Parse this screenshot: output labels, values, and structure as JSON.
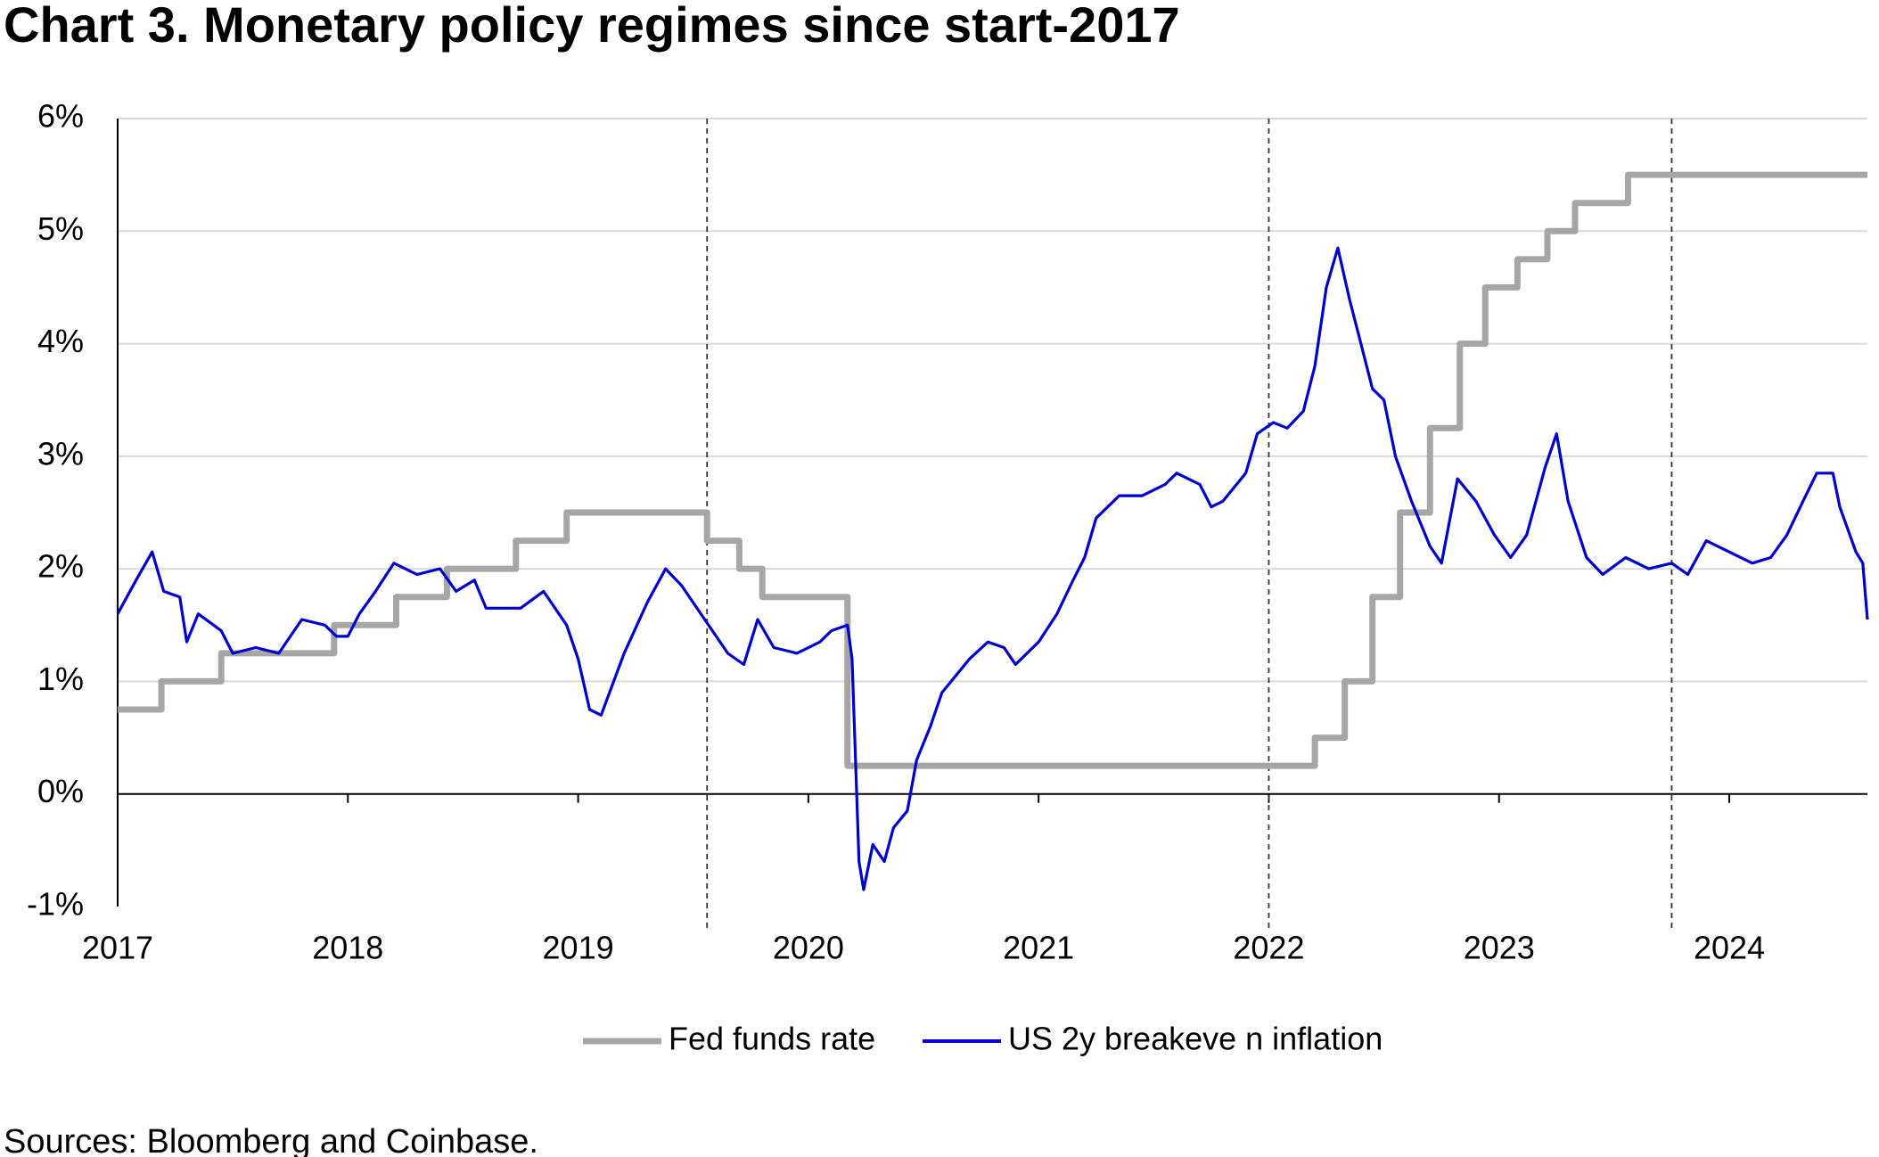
{
  "chart_data": {
    "type": "line",
    "title": "Chart 3. Monetary policy regimes since start-2017",
    "source": "Sources: Bloomberg and Coinbase.",
    "xlim": [
      2017,
      2024.6
    ],
    "xticks": [
      2017,
      2018,
      2019,
      2020,
      2021,
      2022,
      2023,
      2024
    ],
    "ylim": [
      -1,
      6
    ],
    "yticks": [
      {
        "value": -1,
        "label": "-1%"
      },
      {
        "value": 0,
        "label": "0%"
      },
      {
        "value": 1,
        "label": "1%"
      },
      {
        "value": 2,
        "label": "2%"
      },
      {
        "value": 3,
        "label": "3%"
      },
      {
        "value": 4,
        "label": "4%"
      },
      {
        "value": 5,
        "label": "5%"
      },
      {
        "value": 6,
        "label": "6%"
      }
    ],
    "grid": true,
    "legend": "bottom",
    "vlines": [
      2019.56,
      2022.0,
      2023.75
    ],
    "series": [
      {
        "name": "Fed funds rate",
        "color": "#a6a6a6",
        "x": [
          2017,
          2017.19,
          2017.19,
          2017.45,
          2017.45,
          2017.94,
          2017.94,
          2018.21,
          2018.21,
          2018.43,
          2018.43,
          2018.73,
          2018.73,
          2018.95,
          2018.95,
          2019.56,
          2019.56,
          2019.7,
          2019.7,
          2019.8,
          2019.8,
          2020.17,
          2020.17,
          2022.2,
          2022.2,
          2022.33,
          2022.33,
          2022.45,
          2022.45,
          2022.57,
          2022.57,
          2022.7,
          2022.7,
          2022.83,
          2022.83,
          2022.94,
          2022.94,
          2023.08,
          2023.08,
          2023.21,
          2023.21,
          2023.33,
          2023.33,
          2023.56,
          2023.56,
          2024.6
        ],
        "values": [
          0.75,
          0.75,
          1,
          1,
          1.25,
          1.25,
          1.5,
          1.5,
          1.75,
          1.75,
          2,
          2,
          2.25,
          2.25,
          2.5,
          2.5,
          2.25,
          2.25,
          2,
          2,
          1.75,
          1.75,
          0.25,
          0.25,
          0.5,
          0.5,
          1,
          1,
          1.75,
          1.75,
          2.5,
          2.5,
          3.25,
          3.25,
          4,
          4,
          4.5,
          4.5,
          4.75,
          4.75,
          5,
          5,
          5.25,
          5.25,
          5.5,
          5.5
        ]
      },
      {
        "name": "US 2y breakeve n inflation",
        "color": "#0000cc",
        "x": [
          2017,
          2017.08,
          2017.15,
          2017.2,
          2017.27,
          2017.3,
          2017.35,
          2017.45,
          2017.5,
          2017.6,
          2017.7,
          2017.8,
          2017.9,
          2017.95,
          2018.0,
          2018.05,
          2018.12,
          2018.2,
          2018.3,
          2018.4,
          2018.47,
          2018.55,
          2018.6,
          2018.75,
          2018.85,
          2018.95,
          2019.0,
          2019.05,
          2019.1,
          2019.2,
          2019.3,
          2019.38,
          2019.45,
          2019.55,
          2019.65,
          2019.72,
          2019.78,
          2019.85,
          2019.95,
          2020.05,
          2020.1,
          2020.17,
          2020.19,
          2020.22,
          2020.24,
          2020.28,
          2020.33,
          2020.37,
          2020.43,
          2020.47,
          2020.53,
          2020.58,
          2020.7,
          2020.78,
          2020.85,
          2020.9,
          2021.0,
          2021.08,
          2021.15,
          2021.2,
          2021.25,
          2021.35,
          2021.45,
          2021.55,
          2021.6,
          2021.7,
          2021.75,
          2021.8,
          2021.9,
          2021.95,
          2022.02,
          2022.08,
          2022.15,
          2022.2,
          2022.25,
          2022.3,
          2022.35,
          2022.4,
          2022.45,
          2022.5,
          2022.55,
          2022.62,
          2022.7,
          2022.75,
          2022.82,
          2022.9,
          2022.98,
          2023.05,
          2023.12,
          2023.2,
          2023.25,
          2023.3,
          2023.38,
          2023.45,
          2023.55,
          2023.65,
          2023.75,
          2023.82,
          2023.9,
          2024.0,
          2024.1,
          2024.18,
          2024.25,
          2024.32,
          2024.38,
          2024.45,
          2024.48,
          2024.55,
          2024.58,
          2024.6
        ],
        "values": [
          1.6,
          1.9,
          2.15,
          1.8,
          1.75,
          1.35,
          1.6,
          1.45,
          1.25,
          1.3,
          1.25,
          1.55,
          1.5,
          1.4,
          1.4,
          1.6,
          1.8,
          2.05,
          1.95,
          2.0,
          1.8,
          1.9,
          1.65,
          1.65,
          1.8,
          1.5,
          1.2,
          0.75,
          0.7,
          1.25,
          1.7,
          2.0,
          1.85,
          1.55,
          1.25,
          1.15,
          1.55,
          1.3,
          1.25,
          1.35,
          1.45,
          1.5,
          1.2,
          -0.6,
          -0.85,
          -0.45,
          -0.6,
          -0.3,
          -0.15,
          0.3,
          0.6,
          0.9,
          1.2,
          1.35,
          1.3,
          1.15,
          1.35,
          1.6,
          1.9,
          2.1,
          2.45,
          2.65,
          2.65,
          2.75,
          2.85,
          2.75,
          2.55,
          2.6,
          2.85,
          3.2,
          3.3,
          3.25,
          3.4,
          3.8,
          4.5,
          4.85,
          4.4,
          4.0,
          3.6,
          3.5,
          3.0,
          2.6,
          2.2,
          2.05,
          2.8,
          2.6,
          2.3,
          2.1,
          2.3,
          2.9,
          3.2,
          2.6,
          2.1,
          1.95,
          2.1,
          2.0,
          2.05,
          1.95,
          2.25,
          2.15,
          2.05,
          2.1,
          2.3,
          2.6,
          2.85,
          2.85,
          2.55,
          2.15,
          2.05,
          1.55
        ]
      }
    ]
  }
}
